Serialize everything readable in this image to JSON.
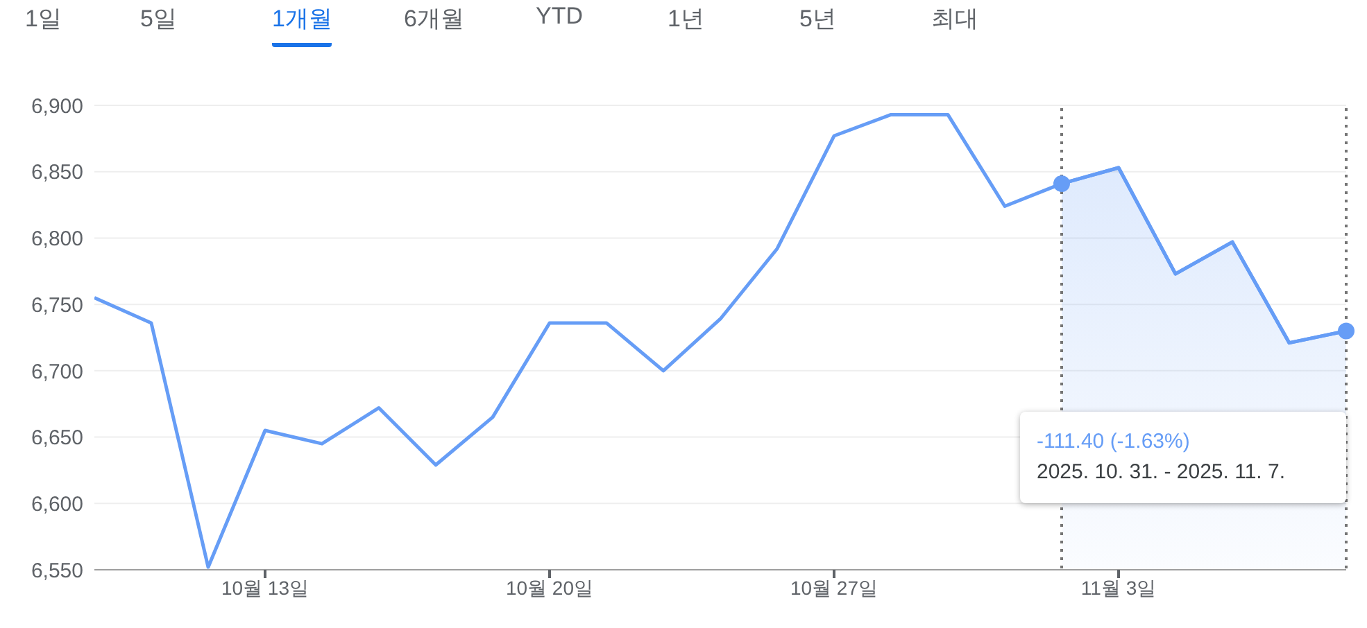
{
  "chart_data": {
    "type": "line",
    "categories": [
      null,
      null,
      null,
      "10월 13일",
      null,
      null,
      null,
      null,
      "10월 20일",
      null,
      null,
      null,
      null,
      "10월 27일",
      null,
      null,
      null,
      null,
      "11월 3일",
      null,
      null,
      null,
      null
    ],
    "series": [
      {
        "color": "#669df6",
        "values": [
          6755,
          6736,
          6552,
          6655,
          6645,
          6672,
          6629,
          6665,
          6736,
          6736,
          6700,
          6739,
          6792,
          6877,
          6893,
          6893,
          6824,
          6841,
          6853,
          6773,
          6797,
          6721,
          6730
        ]
      },
      {
        "type": "area",
        "color": "#669df6",
        "values": [
          null,
          null,
          null,
          null,
          null,
          null,
          null,
          null,
          null,
          null,
          null,
          null,
          null,
          null,
          null,
          null,
          null,
          6841,
          6853,
          6773,
          6797,
          6721,
          6730
        ]
      }
    ],
    "ylim": [
      6550,
      6900
    ],
    "yticks": [
      {
        "value": 6550,
        "label": "6,550"
      },
      {
        "value": 6600,
        "label": "6,600"
      },
      {
        "value": 6650,
        "label": "6,650"
      },
      {
        "value": 6700,
        "label": "6,700"
      },
      {
        "value": 6750,
        "label": "6,750"
      },
      {
        "value": 6800,
        "label": "6,800"
      },
      {
        "value": 6850,
        "label": "6,850"
      },
      {
        "value": 6900,
        "label": "6,900"
      }
    ],
    "annotations": [
      "1일",
      "5일",
      "1개월",
      "6개월",
      "YTD",
      "1년",
      "5년",
      "최대",
      "-111.40 (-1.63%)",
      "2025. 10. 31. - 2025. 11. 7."
    ],
    "grid": "y",
    "legend": false,
    "marker": "none",
    "line_style": "solid"
  }
}
